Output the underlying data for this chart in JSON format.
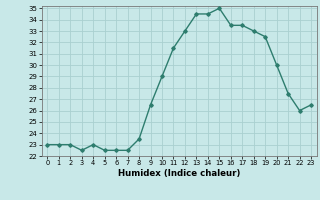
{
  "x": [
    0,
    1,
    2,
    3,
    4,
    5,
    6,
    7,
    8,
    9,
    10,
    11,
    12,
    13,
    14,
    15,
    16,
    17,
    18,
    19,
    20,
    21,
    22,
    23
  ],
  "y": [
    23.0,
    23.0,
    23.0,
    22.5,
    23.0,
    22.5,
    22.5,
    22.5,
    23.5,
    26.5,
    29.0,
    31.5,
    33.0,
    34.5,
    34.5,
    35.0,
    33.5,
    33.5,
    33.0,
    32.5,
    30.0,
    27.5,
    26.0,
    26.5
  ],
  "xlabel": "Humidex (Indice chaleur)",
  "ylim": [
    22,
    35
  ],
  "xlim": [
    -0.5,
    23.5
  ],
  "yticks": [
    22,
    23,
    24,
    25,
    26,
    27,
    28,
    29,
    30,
    31,
    32,
    33,
    34,
    35
  ],
  "xticks": [
    0,
    1,
    2,
    3,
    4,
    5,
    6,
    7,
    8,
    9,
    10,
    11,
    12,
    13,
    14,
    15,
    16,
    17,
    18,
    19,
    20,
    21,
    22,
    23
  ],
  "line_color": "#2e7d6e",
  "bg_color": "#c8e8e8",
  "grid_color": "#aad0d0",
  "marker": "D",
  "marker_size": 1.8,
  "line_width": 1.0
}
